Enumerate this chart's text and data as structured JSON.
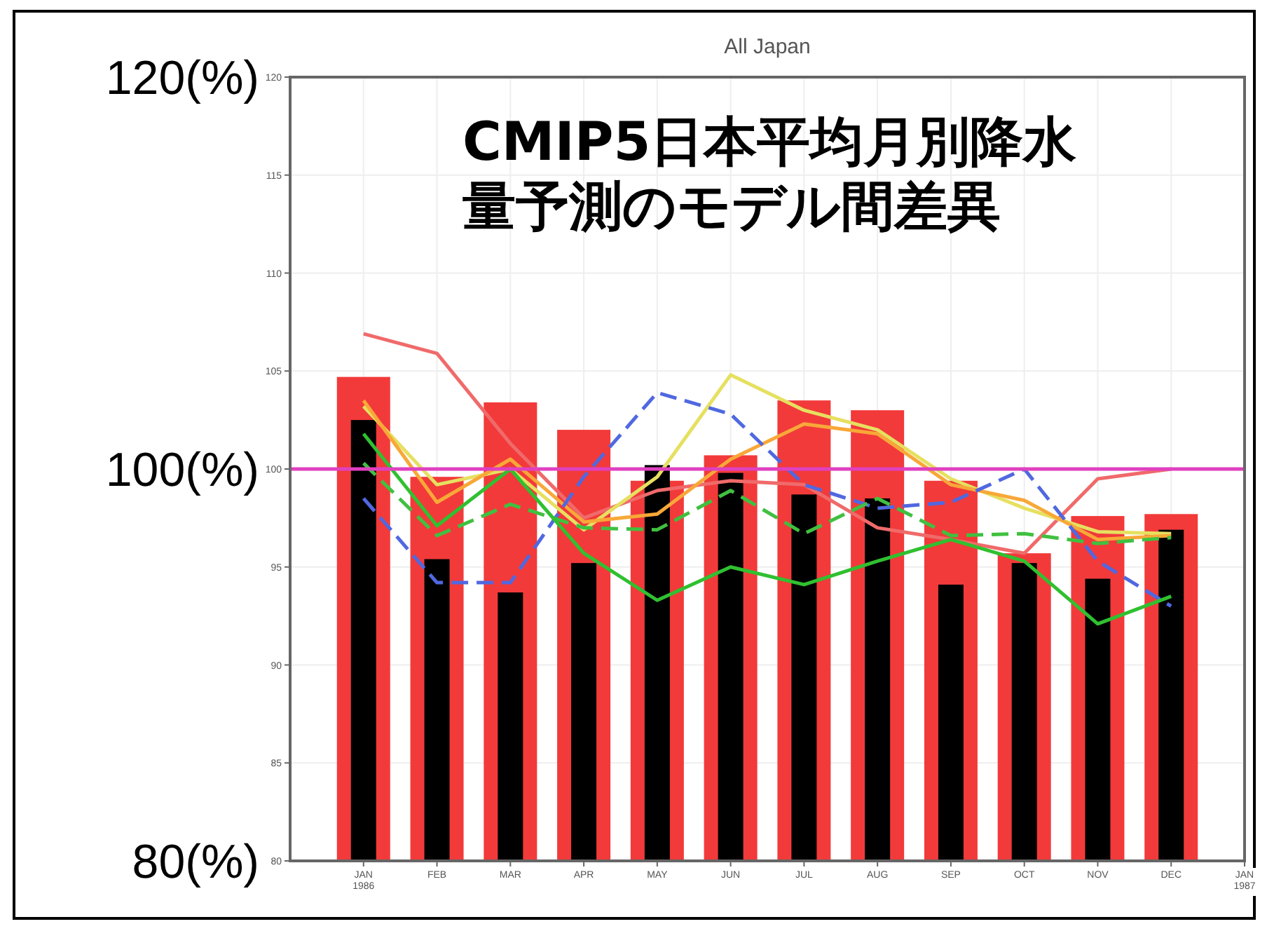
{
  "chart_data": {
    "type": "bar",
    "title": "All Japan",
    "categories": [
      "JAN 1986",
      "FEB",
      "MAR",
      "APR",
      "MAY",
      "JUN",
      "JUL",
      "AUG",
      "SEP",
      "OCT",
      "NOV",
      "DEC",
      "JAN 1987"
    ],
    "series": [
      {
        "color": "#f23a3a",
        "values": [
          104.7,
          99.6,
          103.4,
          102.0,
          99.4,
          100.7,
          103.5,
          103.0,
          99.4,
          95.7,
          97.6,
          97.7,
          null
        ]
      },
      {
        "color": "#000000",
        "values": [
          102.5,
          95.4,
          93.7,
          95.2,
          100.2,
          99.8,
          98.7,
          98.5,
          94.1,
          95.2,
          94.4,
          96.9,
          null
        ]
      },
      {
        "type": "line",
        "color": "#f06a6a",
        "line_style": "solid",
        "values": [
          106.9,
          105.9,
          101.3,
          97.5,
          98.9,
          99.4,
          99.2,
          97.0,
          96.4,
          95.7,
          99.5,
          100.0,
          null
        ]
      },
      {
        "type": "line",
        "color": "#e6e060",
        "line_style": "solid",
        "values": [
          103.2,
          99.2,
          100.0,
          96.9,
          99.6,
          104.8,
          103.0,
          102.0,
          99.5,
          98.0,
          96.8,
          96.7,
          null
        ]
      },
      {
        "type": "line",
        "color": "#f8a838",
        "line_style": "solid",
        "values": [
          103.5,
          98.3,
          100.5,
          97.3,
          97.7,
          100.5,
          102.3,
          101.8,
          99.2,
          98.4,
          96.4,
          96.6,
          null
        ]
      },
      {
        "type": "line",
        "color": "#5068e0",
        "line_style": "dashed",
        "values": [
          98.5,
          94.2,
          94.2,
          99.6,
          103.9,
          102.8,
          99.2,
          98.0,
          98.3,
          100.0,
          95.3,
          93.0,
          null
        ]
      },
      {
        "type": "line",
        "color": "#40c040",
        "line_style": "dashed",
        "values": [
          100.3,
          96.6,
          98.2,
          97.0,
          96.9,
          98.9,
          96.7,
          98.5,
          96.6,
          96.7,
          96.2,
          96.5,
          null
        ]
      },
      {
        "type": "line",
        "color": "#30c030",
        "line_style": "solid",
        "values": [
          101.8,
          97.1,
          100.0,
          95.7,
          93.3,
          95.0,
          94.1,
          95.3,
          96.4,
          95.3,
          92.1,
          93.5,
          null
        ]
      }
    ],
    "ylim": [
      80,
      120
    ],
    "yticks": [
      80,
      85,
      90,
      95,
      100,
      105,
      110,
      115,
      120
    ],
    "grid": true,
    "y2lim": [
      80,
      120
    ],
    "y2ticks": [
      {
        "value": 80,
        "label": "80(%)"
      },
      {
        "value": 100,
        "label": "100(%)"
      },
      {
        "value": 120,
        "label": "120(%)"
      }
    ],
    "ref_lines": [
      {
        "axis": "y",
        "value": 100,
        "color": "#e040c0"
      }
    ],
    "annotations": [
      "CMIP5日本平均月別降水量予測のモデル間差異"
    ]
  }
}
